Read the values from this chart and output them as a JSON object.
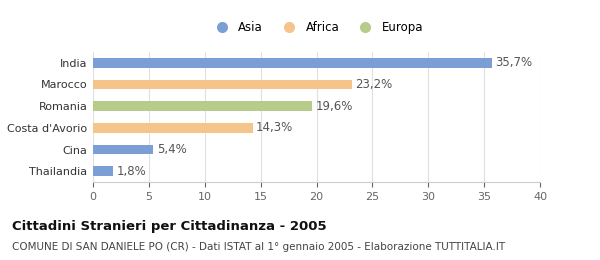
{
  "categories": [
    "Thailandia",
    "Cina",
    "Costa d'Avorio",
    "Romania",
    "Marocco",
    "India"
  ],
  "values": [
    1.8,
    5.4,
    14.3,
    19.6,
    23.2,
    35.7
  ],
  "labels": [
    "1,8%",
    "5,4%",
    "14,3%",
    "19,6%",
    "23,2%",
    "35,7%"
  ],
  "colors": [
    "#7b9fd4",
    "#7b9fd4",
    "#f5c48a",
    "#b8cc8a",
    "#f5c48a",
    "#7b9fd4"
  ],
  "legend_entries": [
    {
      "label": "Asia",
      "color": "#7b9fd4"
    },
    {
      "label": "Africa",
      "color": "#f5c48a"
    },
    {
      "label": "Europa",
      "color": "#b8cc8a"
    }
  ],
  "xlim": [
    0,
    40
  ],
  "xticks": [
    0,
    5,
    10,
    15,
    20,
    25,
    30,
    35,
    40
  ],
  "title_bold": "Cittadini Stranieri per Cittadinanza - 2005",
  "subtitle": "COMUNE DI SAN DANIELE PO (CR) - Dati ISTAT al 1° gennaio 2005 - Elaborazione TUTTITALIA.IT",
  "background_color": "#ffffff",
  "bar_height": 0.45,
  "label_fontsize": 8.5,
  "axis_label_fontsize": 8,
  "title_fontsize": 9.5,
  "subtitle_fontsize": 7.5
}
